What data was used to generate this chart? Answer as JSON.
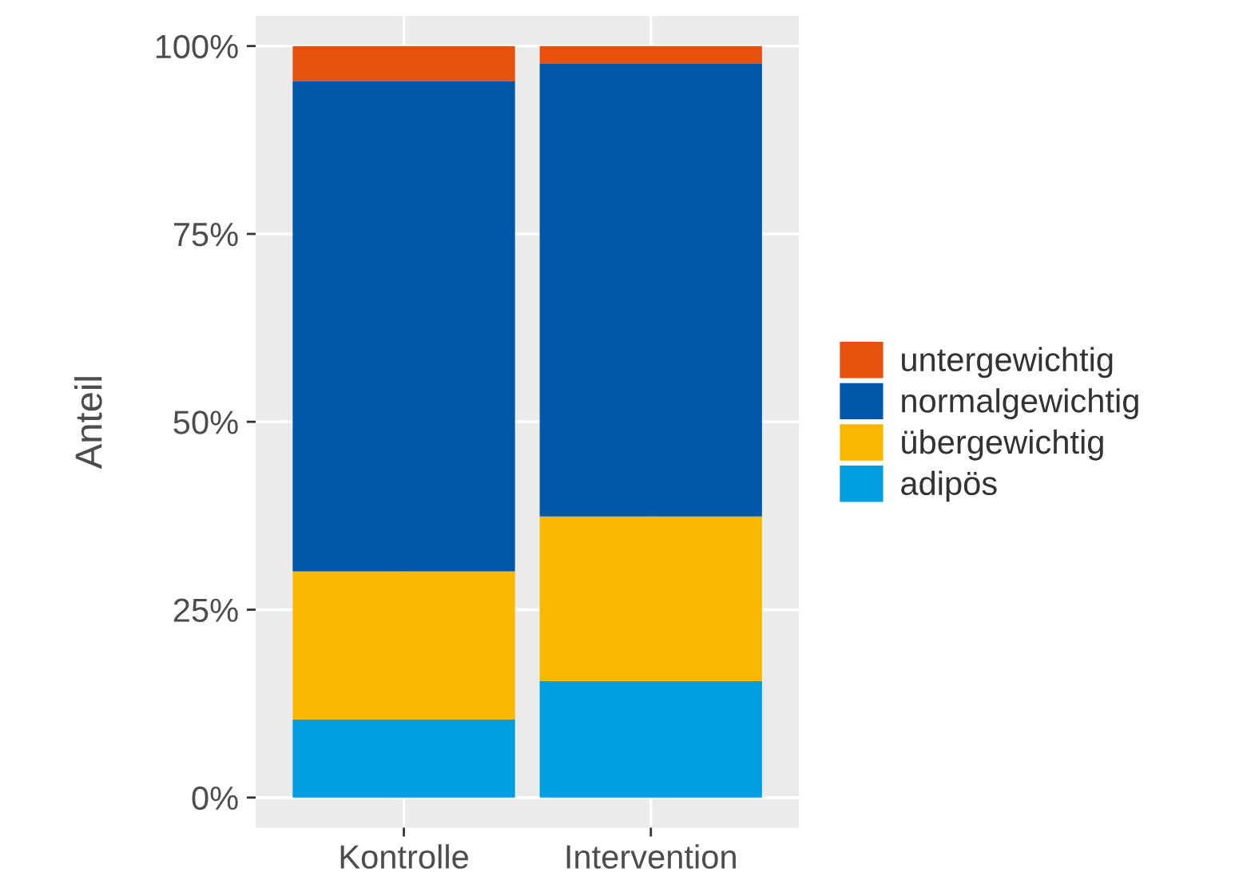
{
  "chart_data": {
    "type": "bar",
    "stacked": true,
    "ylabel": "Anteil",
    "categories": [
      "Kontrolle",
      "Intervention"
    ],
    "series": [
      {
        "name": "adipös",
        "color": "#009ee0",
        "values": [
          10.4,
          15.5
        ]
      },
      {
        "name": "übergewichtig",
        "color": "#f8b800",
        "values": [
          19.7,
          21.9
        ]
      },
      {
        "name": "normalgewichtig",
        "color": "#0057a8",
        "values": [
          65.2,
          60.3
        ]
      },
      {
        "name": "untergewichtig",
        "color": "#e8500e",
        "values": [
          4.7,
          2.3
        ]
      }
    ],
    "ylim": [
      -4,
      104
    ],
    "yticks": [
      {
        "value": 0,
        "label": "0%"
      },
      {
        "value": 25,
        "label": "25%"
      },
      {
        "value": 50,
        "label": "50%"
      },
      {
        "value": 75,
        "label": "75%"
      },
      {
        "value": 100,
        "label": "100%"
      }
    ],
    "grid": true,
    "legend": "right"
  }
}
